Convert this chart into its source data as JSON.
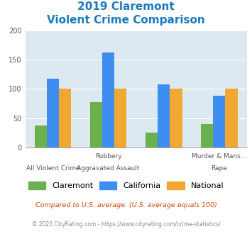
{
  "title_line1": "2019 Claremont",
  "title_line2": "Violent Crime Comparison",
  "title_color": "#1a7abf",
  "top_labels": [
    "",
    "Robbery",
    "",
    "Murder & Mans..."
  ],
  "bot_labels": [
    "All Violent Crime",
    "Aggravated Assault",
    "",
    "Rape"
  ],
  "claremont": [
    38,
    77,
    25,
    40
  ],
  "california": [
    118,
    162,
    108,
    88
  ],
  "national": [
    100,
    100,
    100,
    100
  ],
  "claremont_color": "#6ab04c",
  "california_color": "#3d8ef0",
  "national_color": "#f0a830",
  "ylim": [
    0,
    200
  ],
  "yticks": [
    0,
    50,
    100,
    150,
    200
  ],
  "plot_bg": "#dce9f0",
  "legend_labels": [
    "Claremont",
    "California",
    "National"
  ],
  "footnote1": "Compared to U.S. average. (U.S. average equals 100)",
  "footnote2": "© 2025 CityRating.com - https://www.cityrating.com/crime-statistics/",
  "footnote1_color": "#cc4400",
  "footnote2_color": "#888888",
  "bar_width": 0.22,
  "group_positions": [
    0,
    1,
    2,
    3
  ]
}
